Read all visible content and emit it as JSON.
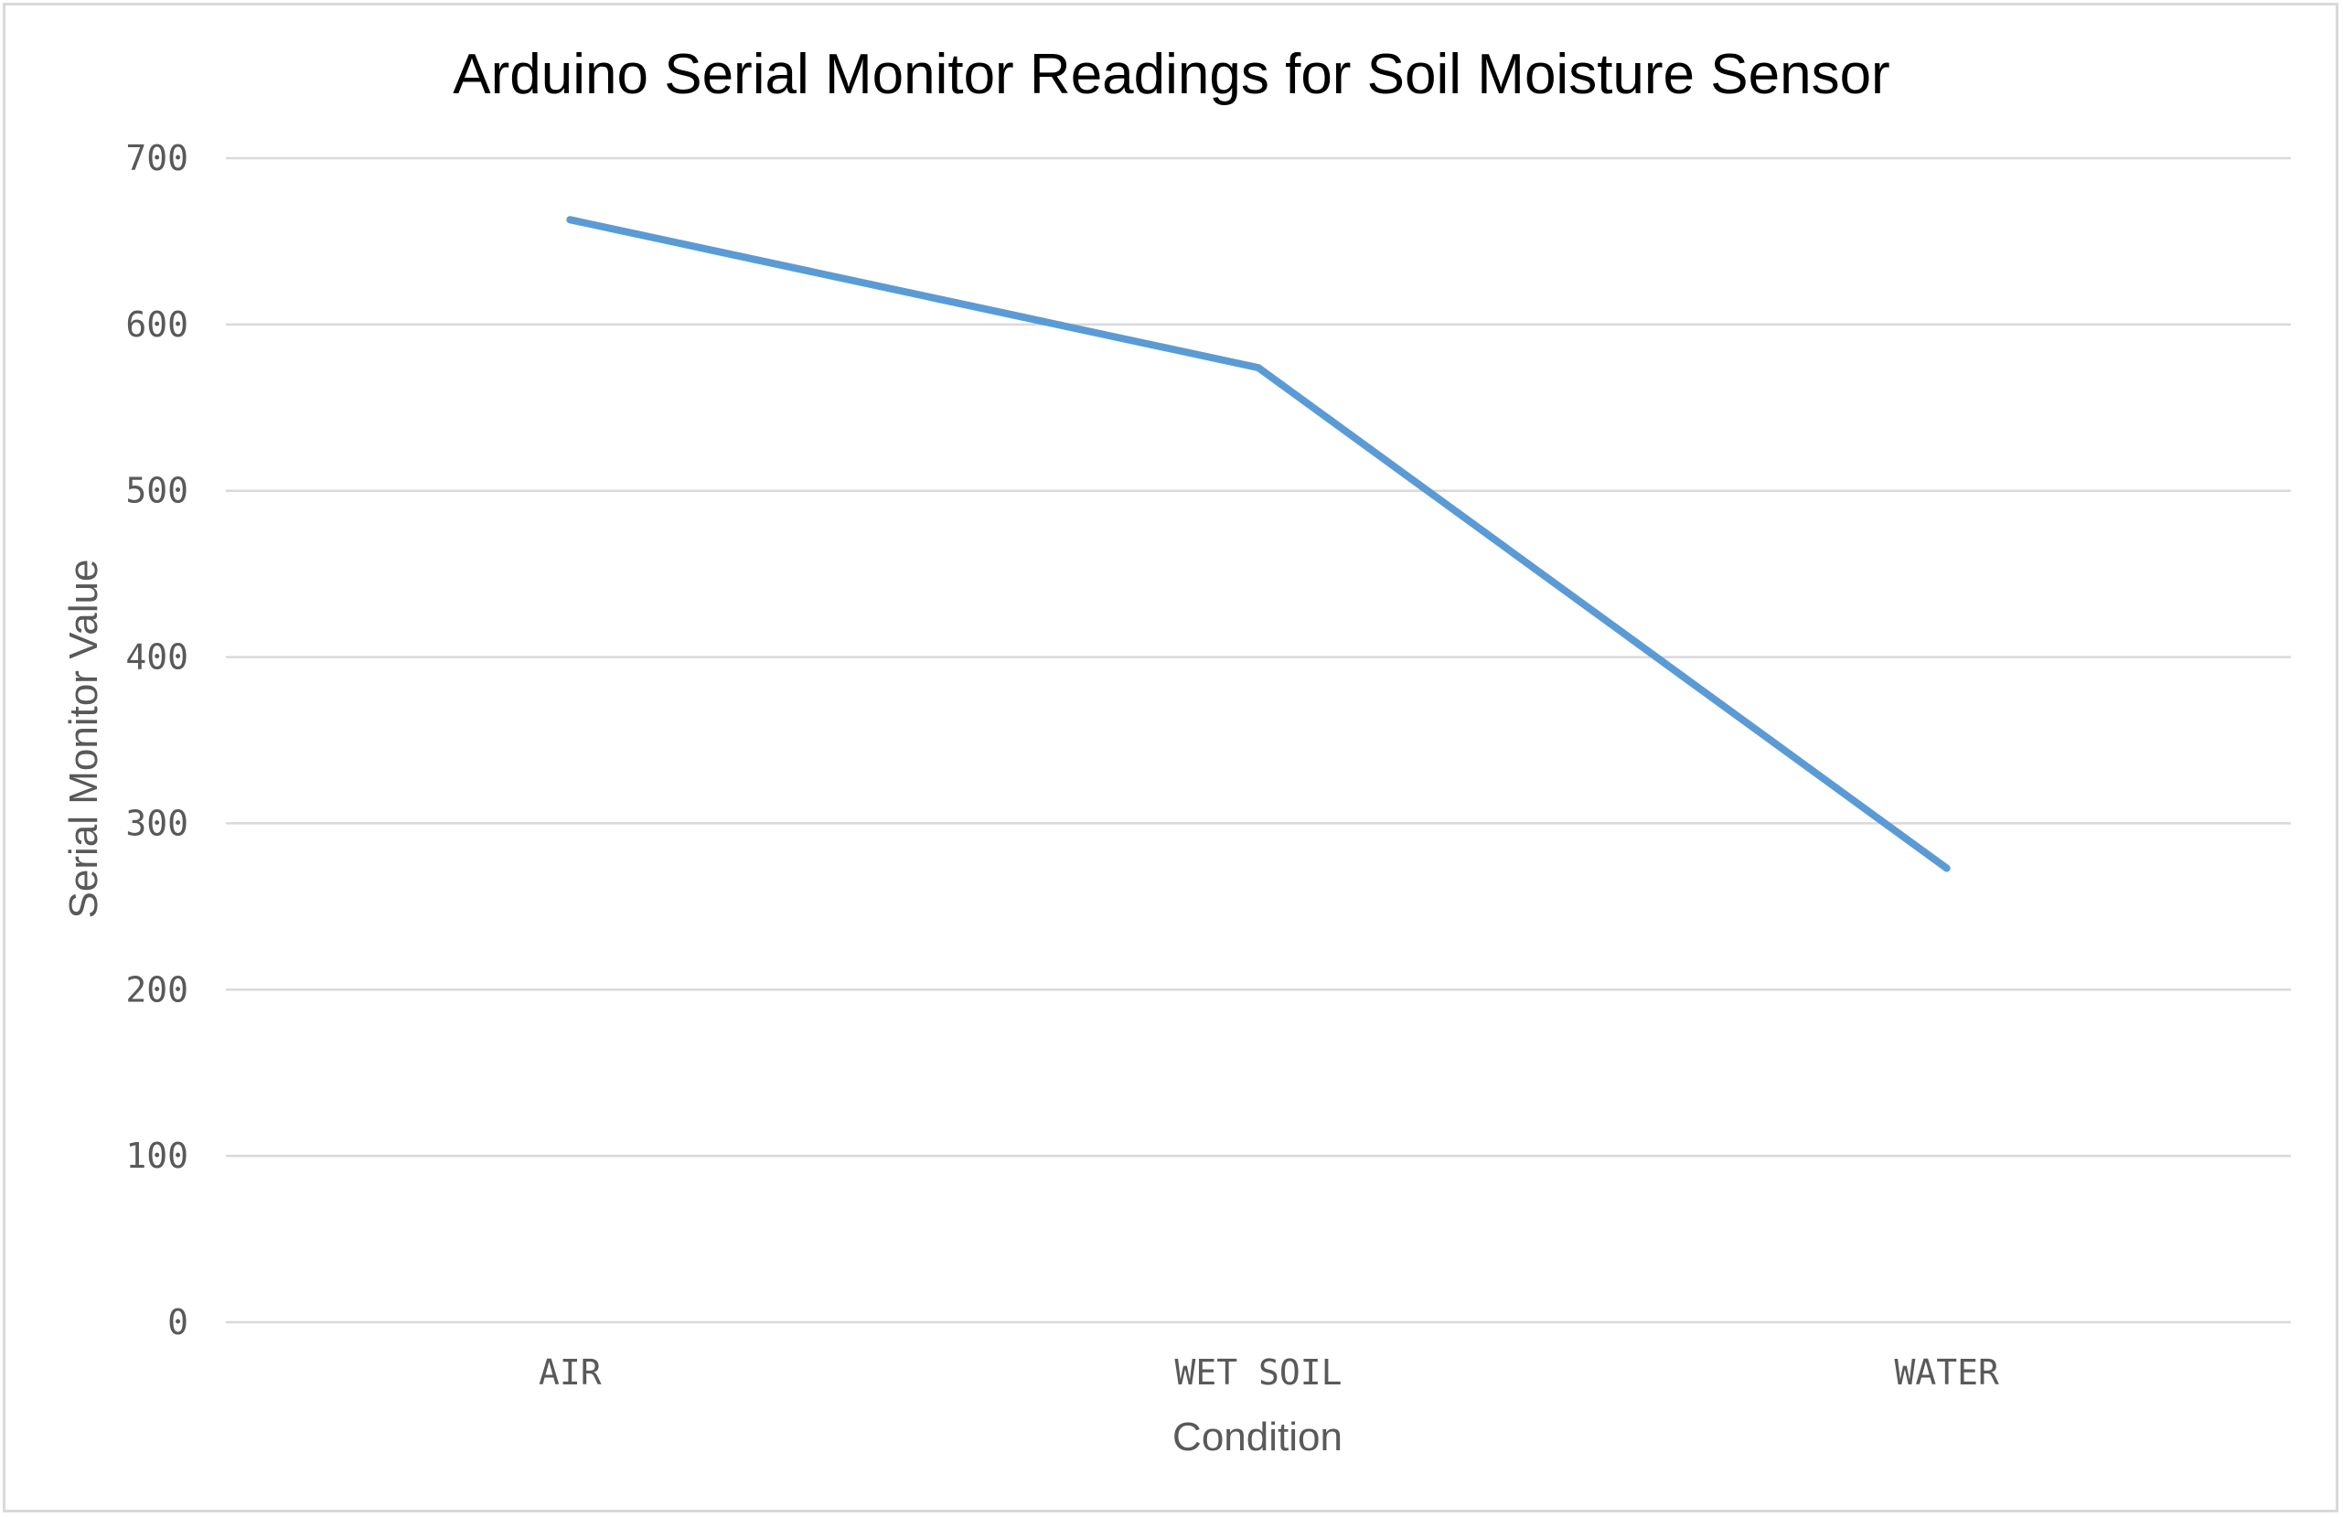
{
  "chart_data": {
    "type": "line",
    "title": "Arduino Serial Monitor Readings for Soil Moisture Sensor",
    "xlabel": "Condition",
    "ylabel": "Serial Monitor Value",
    "categories": [
      "AIR",
      "WET SOIL",
      "WATER"
    ],
    "series": [
      {
        "values": [
          663,
          574,
          273
        ],
        "color": "#5b9bd5"
      }
    ],
    "ylim": [
      0,
      700
    ],
    "yticks": [
      0,
      100,
      200,
      300,
      400,
      500,
      600,
      700
    ],
    "grid": true,
    "legend": "none"
  }
}
